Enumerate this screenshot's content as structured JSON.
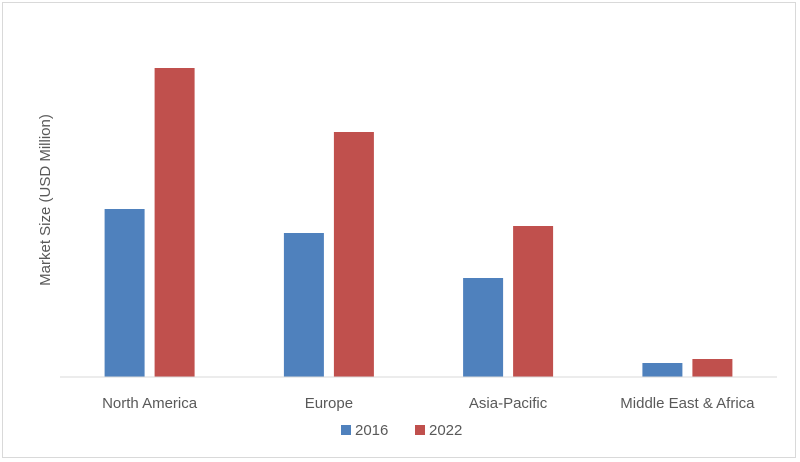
{
  "chart_data": {
    "type": "bar",
    "categories": [
      "North America",
      "Europe",
      "Asia-Pacific",
      "Middle East & Africa"
    ],
    "series": [
      {
        "name": "2016",
        "values": [
          168,
          144,
          99,
          14
        ],
        "color": "#4f81bd"
      },
      {
        "name": "2022",
        "values": [
          309,
          245,
          151,
          18
        ],
        "color": "#c0504d"
      }
    ],
    "title": "",
    "xlabel": "",
    "ylabel": "Market Size (USD Million)",
    "ylim": [
      0,
      330
    ],
    "y_tick_labels_shown": false,
    "grid": false,
    "legend_position": "bottom"
  }
}
